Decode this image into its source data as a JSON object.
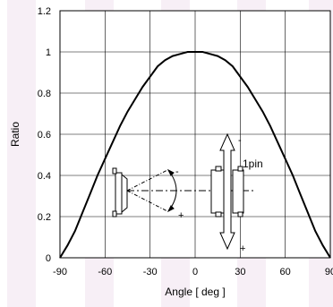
{
  "chart_data": {
    "type": "line",
    "xlabel": "Angle [ deg ]",
    "ylabel": "Ratio",
    "xlim": [
      -90,
      90
    ],
    "ylim": [
      0,
      1.2
    ],
    "x_ticks": [
      "-90",
      "-60",
      "-30",
      "0",
      "30",
      "60",
      "90"
    ],
    "y_ticks": [
      "0",
      "0.2",
      "0.4",
      "0.6",
      "0.8",
      "1",
      "1.2"
    ],
    "grid": true,
    "series": [
      {
        "x": [
          -90,
          -85,
          -80,
          -75,
          -70,
          -65,
          -60,
          -55,
          -50,
          -45,
          -40,
          -35,
          -30,
          -25,
          -20,
          -15,
          -10,
          -5,
          0,
          5,
          10,
          15,
          20,
          25,
          30,
          35,
          40,
          45,
          50,
          55,
          60,
          65,
          70,
          75,
          80,
          85,
          90
        ],
        "y": [
          0.0,
          0.06,
          0.13,
          0.22,
          0.31,
          0.4,
          0.48,
          0.56,
          0.64,
          0.71,
          0.77,
          0.83,
          0.88,
          0.93,
          0.96,
          0.98,
          0.99,
          1.0,
          1.0,
          1.0,
          0.99,
          0.98,
          0.96,
          0.93,
          0.88,
          0.83,
          0.77,
          0.71,
          0.64,
          0.56,
          0.48,
          0.4,
          0.31,
          0.22,
          0.13,
          0.06,
          0.0
        ]
      }
    ],
    "annotations": {
      "pin_label": "1pin",
      "minus_sign": "-",
      "plus_sign": "+"
    },
    "colors": {
      "curve": "#000000",
      "background_stripes": "#f6eef5"
    }
  }
}
